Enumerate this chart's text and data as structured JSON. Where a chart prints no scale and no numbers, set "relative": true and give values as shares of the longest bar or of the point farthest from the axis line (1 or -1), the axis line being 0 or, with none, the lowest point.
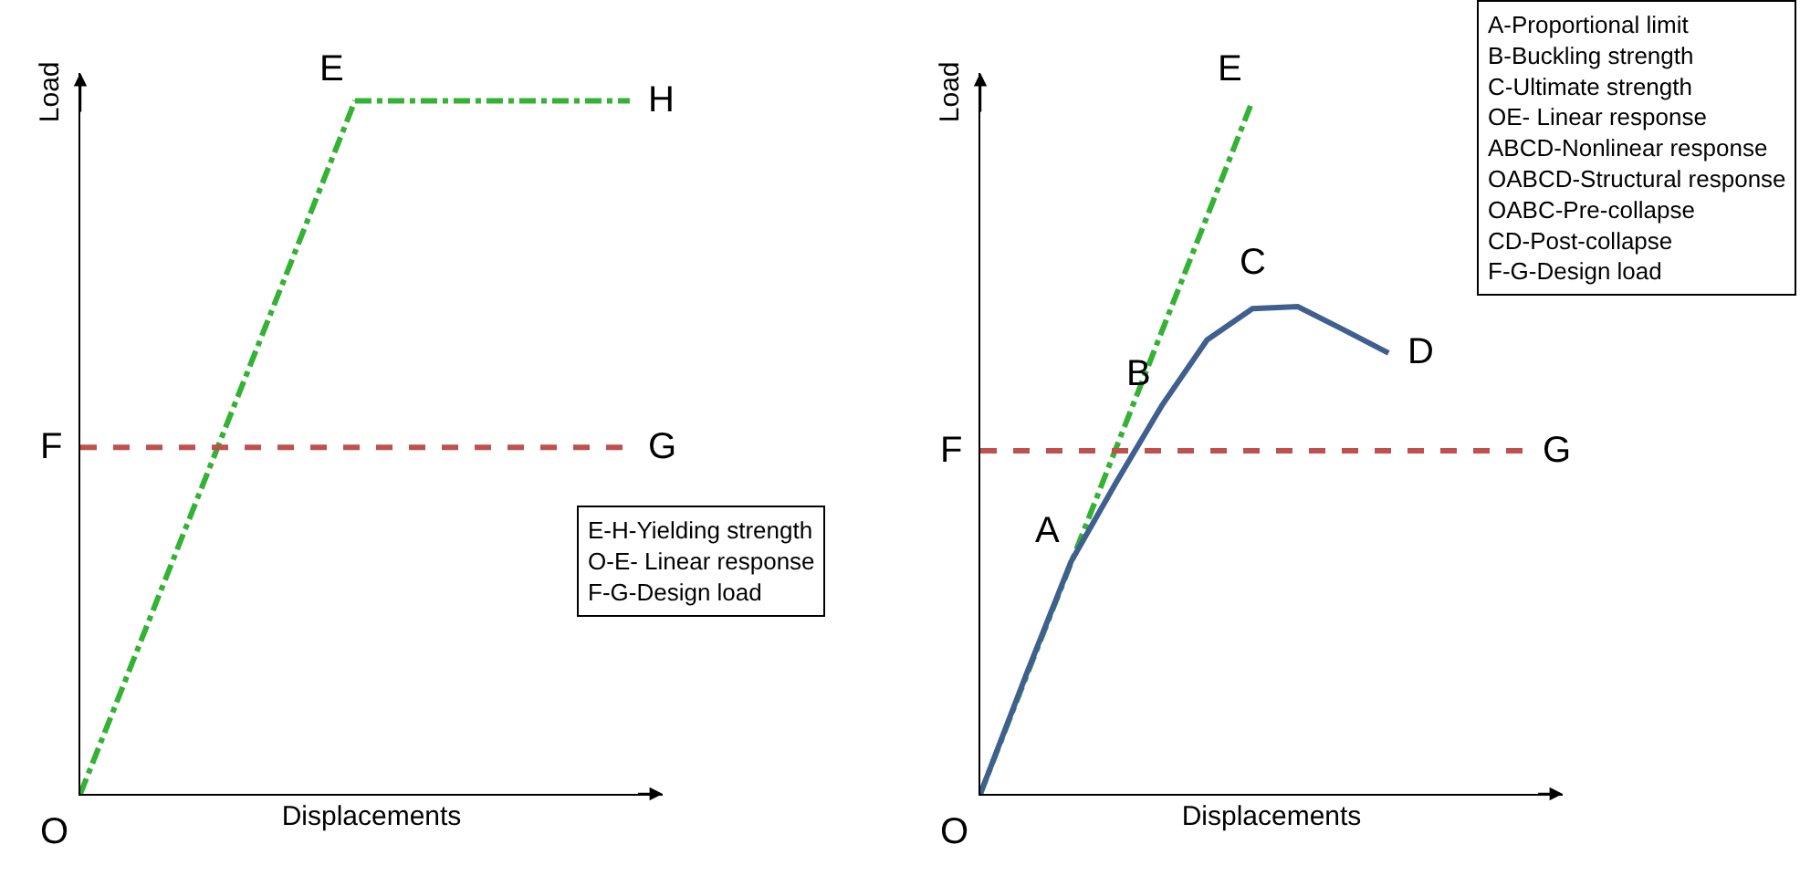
{
  "chart_data": [
    {
      "type": "line",
      "relative": true,
      "xlabel": "Displacements",
      "ylabel": "Load",
      "categories": [
        null,
        null,
        null
      ],
      "series": [
        {
          "color": "#33b233",
          "line_style": "dashdot",
          "values": [
            0,
            1,
            null
          ]
        },
        {
          "color": "#33b233",
          "line_style": "dashdot",
          "values": [
            null,
            1,
            1
          ]
        },
        {
          "color": "#c0504d",
          "line_style": "dashed",
          "values": [
            0.5,
            0.5,
            0.5
          ]
        }
      ],
      "annotations": [
        "E",
        "H",
        "F",
        "G",
        "O",
        "E-H-Yielding strength",
        "O-E- Linear response",
        "F-G-Design load"
      ]
    },
    {
      "type": "line",
      "relative": true,
      "xlabel": "Displacements",
      "ylabel": "Load",
      "categories": [
        null,
        null,
        null,
        null,
        null,
        null,
        null,
        null,
        null,
        null,
        null,
        null,
        null
      ],
      "series": [
        {
          "color": "#33b233",
          "line_style": "dashdot",
          "values": [
            0,
            0.167,
            0.333,
            0.5,
            0.667,
            0.833,
            1,
            null,
            null,
            null,
            null,
            null,
            null
          ]
        },
        {
          "color": "#c0504d",
          "line_style": "dashed",
          "values": [
            0.495,
            0.495,
            0.495,
            0.495,
            0.495,
            0.495,
            0.495,
            0.495,
            0.495,
            0.495,
            0.495,
            0.495,
            0.495
          ]
        },
        {
          "color": "#3f5f8f",
          "line_style": "solid",
          "values": [
            0,
            0.17,
            0.335,
            0.45,
            0.56,
            0.655,
            0.7,
            0.703,
            0.67,
            0.636,
            null,
            null,
            null
          ]
        }
      ],
      "annotations": [
        "A",
        "B",
        "C",
        "D",
        "E",
        "F",
        "G",
        "O",
        "A-Proportional limit",
        "B-Buckling strength",
        "C-Ultimate strength",
        "OE- Linear response",
        "ABCD-Nonlinear response",
        "OABCD-Structural response",
        "OABC-Pre-collapse",
        "CD-Post-collapse",
        "F-G-Design load"
      ]
    }
  ]
}
